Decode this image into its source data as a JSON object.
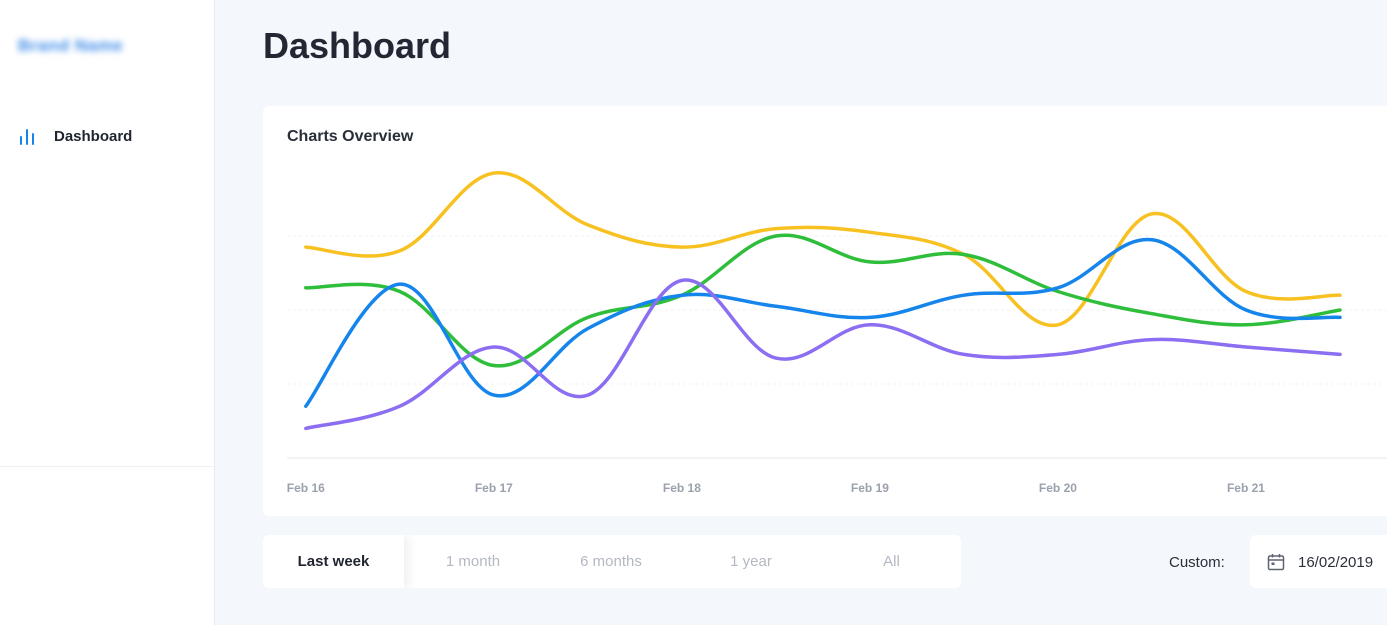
{
  "sidebar": {
    "brand": "Brand Name",
    "items": [
      {
        "label": "Dashboard",
        "icon": "bar-chart-icon",
        "active": true
      }
    ]
  },
  "page": {
    "title": "Dashboard"
  },
  "chart_card": {
    "title": "Charts Overview"
  },
  "chart_data": {
    "type": "line",
    "title": "Charts Overview",
    "x_labels": [
      "Feb 16",
      "Feb 17",
      "Feb 18",
      "Feb 19",
      "Feb 20",
      "Feb 21"
    ],
    "x": [
      0,
      0.5,
      1,
      1.5,
      2,
      2.5,
      3,
      3.5,
      4,
      4.5,
      5,
      5.5
    ],
    "xlim": [
      -0.1,
      5.75
    ],
    "ylim": [
      0,
      4
    ],
    "gridlines": [
      1,
      2,
      3
    ],
    "grid": true,
    "legend": false,
    "series": [
      {
        "color": "#f8c122",
        "values": [
          2.85,
          2.8,
          3.85,
          3.15,
          2.85,
          3.1,
          3.05,
          2.75,
          1.8,
          3.3,
          2.25,
          2.2
        ]
      },
      {
        "color": "#2fbe3b",
        "values": [
          2.3,
          2.25,
          1.25,
          1.9,
          2.2,
          3.0,
          2.65,
          2.75,
          2.25,
          1.95,
          1.8,
          2.0
        ]
      },
      {
        "color": "#1585ec",
        "values": [
          0.7,
          2.35,
          0.85,
          1.75,
          2.2,
          2.05,
          1.9,
          2.2,
          2.3,
          2.95,
          2.0,
          1.9
        ]
      },
      {
        "color": "#8b6ef2",
        "values": [
          0.4,
          0.7,
          1.5,
          0.85,
          2.4,
          1.35,
          1.8,
          1.4,
          1.4,
          1.6,
          1.5,
          1.4
        ]
      }
    ]
  },
  "range_selector": {
    "options": [
      {
        "label": "Last week",
        "active": true
      },
      {
        "label": "1 month",
        "active": false
      },
      {
        "label": "6 months",
        "active": false
      },
      {
        "label": "1 year",
        "active": false
      },
      {
        "label": "All",
        "active": false
      }
    ]
  },
  "custom_range": {
    "label": "Custom:",
    "icon": "calendar-icon",
    "start_date": "16/02/2019"
  }
}
